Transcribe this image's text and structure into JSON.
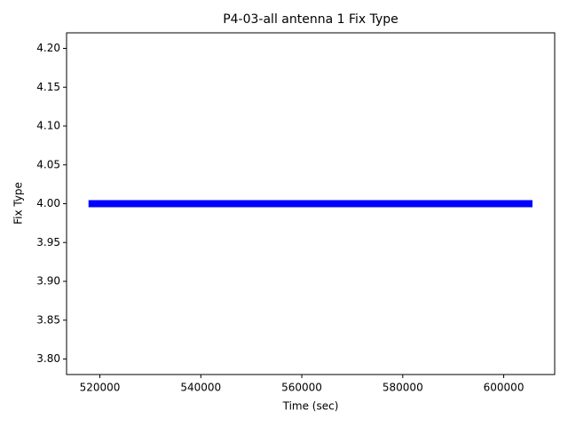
{
  "chart_data": {
    "type": "line",
    "title": "P4-03-all antenna 1 Fix Type",
    "x_label": "Time (sec)",
    "y_label": "Fix Type",
    "x": [
      517750,
      605700
    ],
    "series": [
      {
        "color": "#0000ff",
        "values": [
          4.0,
          4.0
        ]
      }
    ],
    "xlim": [
      513400,
      610100
    ],
    "ylim": [
      3.78,
      4.22
    ],
    "xticks": [
      520000,
      540000,
      560000,
      580000,
      600000
    ],
    "yticks": [
      {
        "value": 3.8,
        "label": "3.80"
      },
      {
        "value": 3.85,
        "label": "3.85"
      },
      {
        "value": 3.9,
        "label": "3.90"
      },
      {
        "value": 3.95,
        "label": "3.95"
      },
      {
        "value": 4.0,
        "label": "4.00"
      },
      {
        "value": 4.05,
        "label": "4.05"
      },
      {
        "value": 4.1,
        "label": "4.10"
      },
      {
        "value": 4.15,
        "label": "4.15"
      },
      {
        "value": 4.2,
        "label": "4.20"
      }
    ],
    "grid": false
  }
}
